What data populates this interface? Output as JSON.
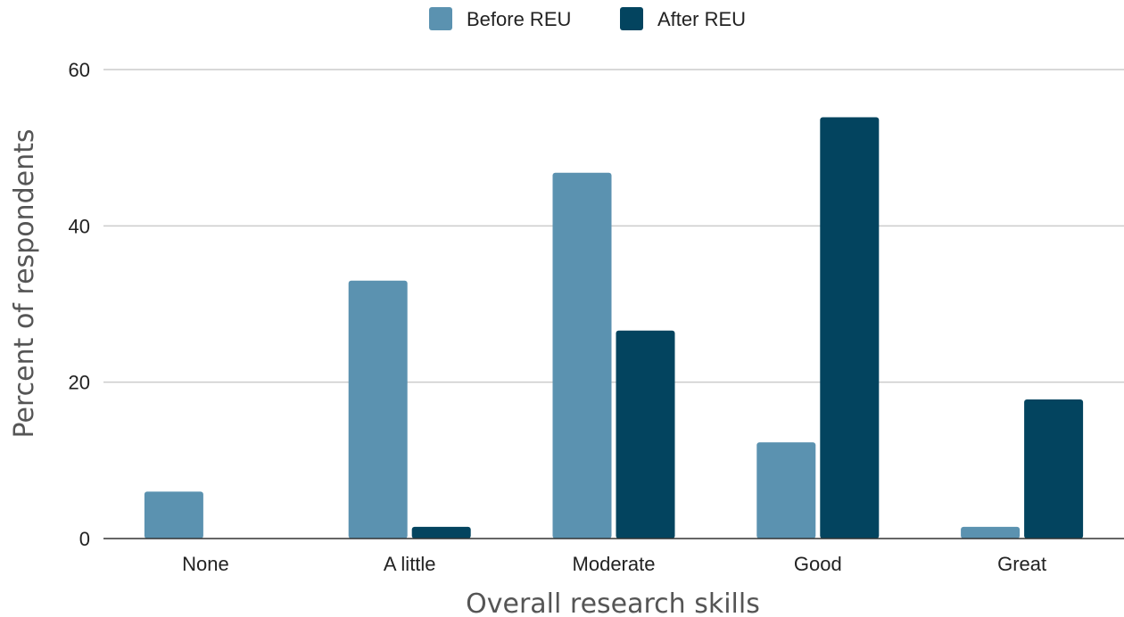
{
  "chart_data": {
    "type": "bar",
    "categories": [
      "None",
      "A little",
      "Moderate",
      "Good",
      "Great"
    ],
    "series": [
      {
        "name": "Before REU",
        "color": "#5b92b0",
        "values": [
          6.0,
          33.0,
          46.8,
          12.3,
          1.5
        ]
      },
      {
        "name": "After REU",
        "color": "#03445f",
        "values": [
          0.0,
          1.5,
          26.6,
          53.9,
          17.8
        ]
      }
    ],
    "title": "",
    "xlabel": "Overall research skills",
    "ylabel": "Percent of respondents",
    "ylim": [
      0,
      60
    ],
    "yticks": [
      "0",
      "20",
      "40",
      "60"
    ],
    "grid": true,
    "legend": "top-center"
  }
}
